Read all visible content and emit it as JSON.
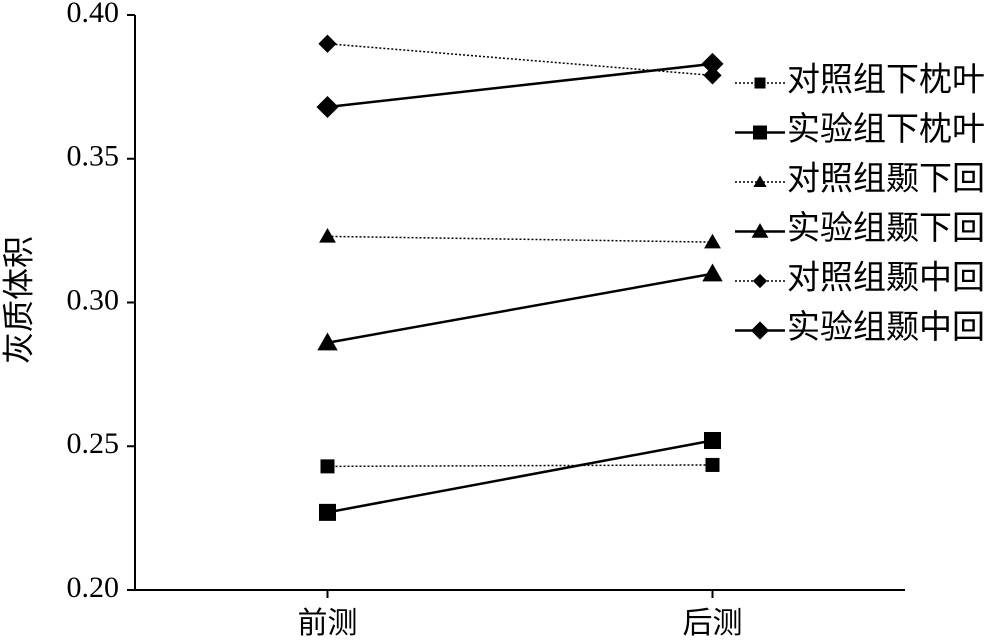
{
  "chart_data": {
    "type": "line",
    "y_label": "灰质体积",
    "categories": [
      "前测",
      "后测"
    ],
    "ylim": [
      0.2,
      0.4
    ],
    "yticks": [
      {
        "value": 0.2,
        "label": "0.20"
      },
      0.25,
      {
        "value": 0.3,
        "label": "0.30"
      },
      0.35,
      {
        "value": 0.4,
        "label": "0.40"
      }
    ],
    "series": [
      {
        "name": "对照组下枕叶",
        "color": "#000000",
        "line_style": "dotted",
        "marker": "square",
        "values": [
          0.243,
          0.2435
        ]
      },
      {
        "name": "实验组下枕叶",
        "color": "#000000",
        "line_style": "solid",
        "marker": "square",
        "values": [
          0.227,
          0.252
        ]
      },
      {
        "name": "对照组颞下回",
        "color": "#000000",
        "line_style": "dotted",
        "marker": "triangle",
        "values": [
          0.323,
          0.321
        ]
      },
      {
        "name": "实验组颞下回",
        "color": "#000000",
        "line_style": "solid",
        "marker": "triangle",
        "values": [
          0.286,
          0.31
        ]
      },
      {
        "name": "对照组颞中回",
        "color": "#000000",
        "line_style": "dotted",
        "marker": "diamond",
        "values": [
          0.39,
          0.379
        ]
      },
      {
        "name": "实验组颞中回",
        "color": "#000000",
        "line_style": "solid",
        "marker": "diamond",
        "values": [
          0.368,
          0.383
        ]
      }
    ]
  }
}
